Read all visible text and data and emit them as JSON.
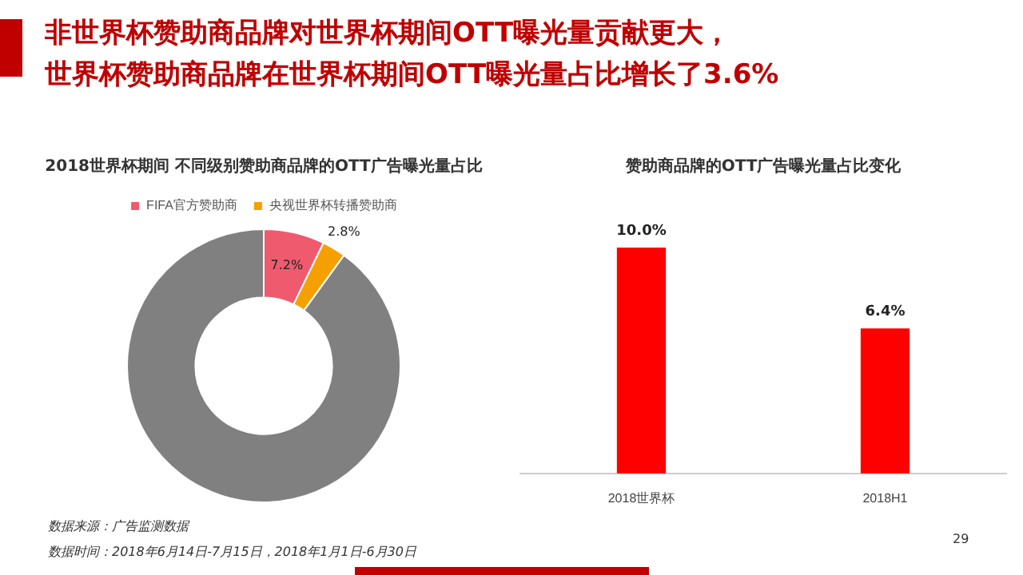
{
  "chart_data": [
    {
      "type": "donut",
      "title": "2018世界杯期间  不同级别赞助商品牌的OTT广告曝光量占比",
      "categories": [
        "FIFA官方赞助商",
        "央视世界杯转播赞助商",
        null
      ],
      "values": [
        7.2,
        2.8,
        90
      ],
      "colors": [
        "#f05a6e",
        "#f5a000",
        "#808080"
      ],
      "value_labels": [
        "7.2%",
        "2.8%",
        null
      ],
      "legend": "top",
      "annotations": [
        "非世界杯赞助商品牌对世界杯期间OTT曝光量贡献更大，",
        "世界杯赞助商品牌在世界杯期间OTT曝光量占比增长了3.6%",
        "数据来源：广告监测数据",
        "数据时间：2018年6月14日-7月15日，2018年1月1日-6月30日",
        "29"
      ]
    },
    {
      "type": "bar",
      "title": "赞助商品牌的OTT广告曝光量占比变化",
      "categories": [
        "2018世界杯",
        "2018H1"
      ],
      "values": [
        10.0,
        6.4
      ],
      "colors": [
        "#ff0000",
        "#ff0000"
      ],
      "value_labels": [
        "10.0%",
        "6.4%"
      ],
      "tick_labels": "x"
    }
  ]
}
